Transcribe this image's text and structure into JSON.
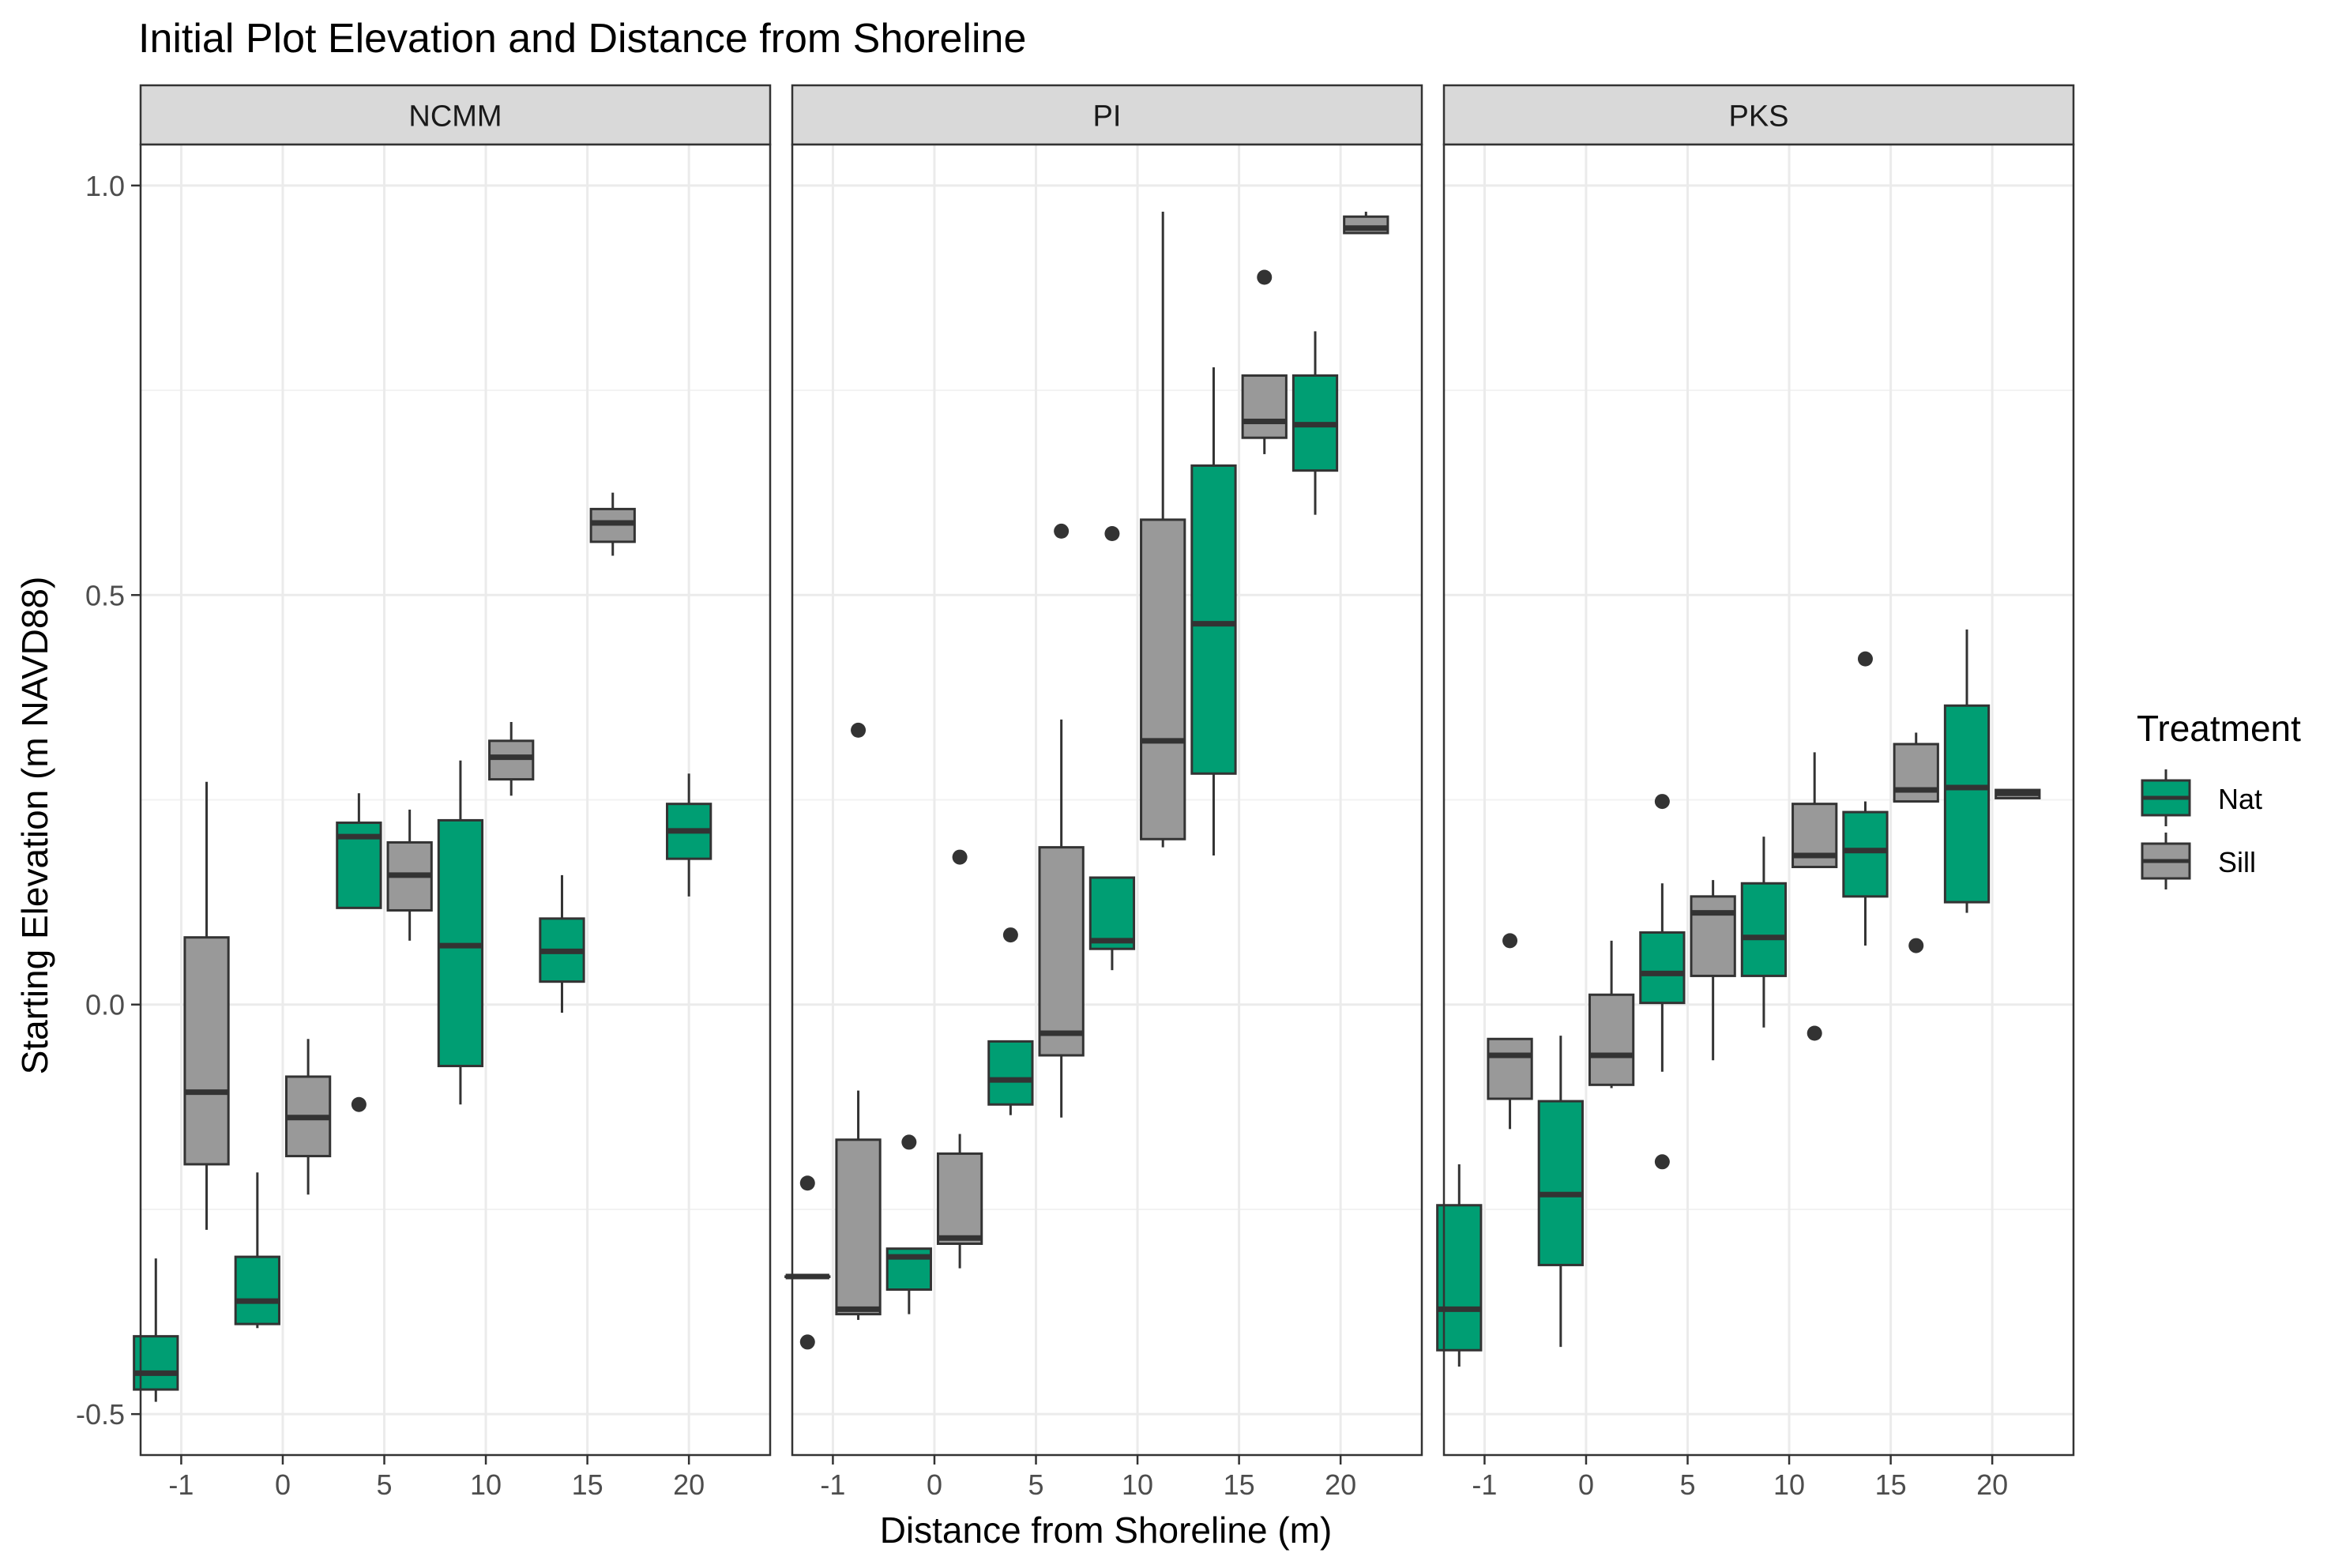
{
  "chart_data": {
    "type": "boxplot",
    "title": "Initial Plot Elevation and Distance from Shoreline",
    "xlabel": "Distance from Shoreline (m)",
    "ylabel": "Starting Elevation (m NAVD88)",
    "ylim": [
      -0.55,
      1.05
    ],
    "y_ticks": [
      "-0.5",
      "0.0",
      "0.5",
      "1.0"
    ],
    "categories": [
      "-1",
      "0",
      "5",
      "10",
      "15",
      "20"
    ],
    "grid": true,
    "legend": {
      "title": "Treatment",
      "position": "right",
      "entries": [
        {
          "name": "Nat",
          "color": "#009E73"
        },
        {
          "name": "Sill",
          "color": "#999999"
        }
      ]
    },
    "panels": [
      {
        "name": "NCMM",
        "boxes": [
          {
            "x": "-1",
            "group": "Nat",
            "whisker_low": -0.485,
            "q1": -0.47,
            "median": -0.45,
            "q3": -0.405,
            "whisker_high": -0.31,
            "outliers": []
          },
          {
            "x": "-1",
            "group": "Sill",
            "whisker_low": -0.275,
            "q1": -0.195,
            "median": -0.107,
            "q3": 0.082,
            "whisker_high": 0.272,
            "outliers": []
          },
          {
            "x": "0",
            "group": "Nat",
            "whisker_low": -0.395,
            "q1": -0.39,
            "median": -0.362,
            "q3": -0.308,
            "whisker_high": -0.205,
            "outliers": []
          },
          {
            "x": "0",
            "group": "Sill",
            "whisker_low": -0.232,
            "q1": -0.185,
            "median": -0.138,
            "q3": -0.088,
            "whisker_high": -0.042,
            "outliers": []
          },
          {
            "x": "5",
            "group": "Nat",
            "whisker_low": 0.118,
            "q1": 0.118,
            "median": 0.205,
            "q3": 0.222,
            "whisker_high": 0.258,
            "outliers": [
              -0.122
            ]
          },
          {
            "x": "5",
            "group": "Sill",
            "whisker_low": 0.078,
            "q1": 0.115,
            "median": 0.158,
            "q3": 0.198,
            "whisker_high": 0.238,
            "outliers": []
          },
          {
            "x": "10",
            "group": "Nat",
            "whisker_low": -0.122,
            "q1": -0.075,
            "median": 0.072,
            "q3": 0.225,
            "whisker_high": 0.298,
            "outliers": []
          },
          {
            "x": "10",
            "group": "Sill",
            "whisker_low": 0.255,
            "q1": 0.275,
            "median": 0.302,
            "q3": 0.322,
            "whisker_high": 0.345,
            "outliers": []
          },
          {
            "x": "15",
            "group": "Nat",
            "whisker_low": -0.01,
            "q1": 0.028,
            "median": 0.065,
            "q3": 0.105,
            "whisker_high": 0.158,
            "outliers": []
          },
          {
            "x": "15",
            "group": "Sill",
            "whisker_low": 0.548,
            "q1": 0.565,
            "median": 0.588,
            "q3": 0.605,
            "whisker_high": 0.625,
            "outliers": []
          },
          {
            "x": "20",
            "group": "Nat",
            "whisker_low": 0.132,
            "q1": 0.178,
            "median": 0.212,
            "q3": 0.245,
            "whisker_high": 0.282,
            "outliers": []
          }
        ]
      },
      {
        "name": "PI",
        "boxes": [
          {
            "x": "-1",
            "group": "Nat",
            "whisker_low": -0.332,
            "q1": -0.332,
            "median": -0.332,
            "q3": -0.332,
            "whisker_high": -0.332,
            "outliers": [
              -0.218,
              -0.412
            ]
          },
          {
            "x": "-1",
            "group": "Sill",
            "whisker_low": -0.385,
            "q1": -0.378,
            "median": -0.372,
            "q3": -0.165,
            "whisker_high": -0.105,
            "outliers": [
              0.335
            ]
          },
          {
            "x": "0",
            "group": "Nat",
            "whisker_low": -0.378,
            "q1": -0.348,
            "median": -0.308,
            "q3": -0.298,
            "whisker_high": -0.298,
            "outliers": [
              -0.168
            ]
          },
          {
            "x": "0",
            "group": "Sill",
            "whisker_low": -0.322,
            "q1": -0.292,
            "median": -0.285,
            "q3": -0.182,
            "whisker_high": -0.158,
            "outliers": [
              0.18
            ]
          },
          {
            "x": "5",
            "group": "Nat",
            "whisker_low": -0.135,
            "q1": -0.122,
            "median": -0.092,
            "q3": -0.045,
            "whisker_high": -0.045,
            "outliers": [
              0.085
            ]
          },
          {
            "x": "5",
            "group": "Sill",
            "whisker_low": -0.138,
            "q1": -0.062,
            "median": -0.035,
            "q3": 0.192,
            "whisker_high": 0.348,
            "outliers": [
              0.578
            ]
          },
          {
            "x": "10",
            "group": "Nat",
            "whisker_low": 0.042,
            "q1": 0.068,
            "median": 0.078,
            "q3": 0.155,
            "whisker_high": 0.155,
            "outliers": [
              0.575
            ]
          },
          {
            "x": "10",
            "group": "Sill",
            "whisker_low": 0.192,
            "q1": 0.202,
            "median": 0.322,
            "q3": 0.592,
            "whisker_high": 0.968,
            "outliers": []
          },
          {
            "x": "15",
            "group": "Nat",
            "whisker_low": 0.182,
            "q1": 0.282,
            "median": 0.465,
            "q3": 0.658,
            "whisker_high": 0.778,
            "outliers": []
          },
          {
            "x": "15",
            "group": "Sill",
            "whisker_low": 0.672,
            "q1": 0.692,
            "median": 0.712,
            "q3": 0.768,
            "whisker_high": 0.768,
            "outliers": [
              0.888
            ]
          },
          {
            "x": "20",
            "group": "Nat",
            "whisker_low": 0.598,
            "q1": 0.652,
            "median": 0.708,
            "q3": 0.768,
            "whisker_high": 0.822,
            "outliers": []
          },
          {
            "x": "20",
            "group": "Sill",
            "whisker_low": 0.942,
            "q1": 0.942,
            "median": 0.948,
            "q3": 0.962,
            "whisker_high": 0.968,
            "outliers": []
          }
        ]
      },
      {
        "name": "PKS",
        "boxes": [
          {
            "x": "-1",
            "group": "Nat",
            "whisker_low": -0.442,
            "q1": -0.422,
            "median": -0.372,
            "q3": -0.245,
            "whisker_high": -0.195,
            "outliers": []
          },
          {
            "x": "-1",
            "group": "Sill",
            "whisker_low": -0.152,
            "q1": -0.115,
            "median": -0.062,
            "q3": -0.042,
            "whisker_high": -0.042,
            "outliers": [
              0.078
            ]
          },
          {
            "x": "0",
            "group": "Nat",
            "whisker_low": -0.418,
            "q1": -0.318,
            "median": -0.232,
            "q3": -0.118,
            "whisker_high": -0.038,
            "outliers": []
          },
          {
            "x": "0",
            "group": "Sill",
            "whisker_low": -0.102,
            "q1": -0.098,
            "median": -0.062,
            "q3": 0.012,
            "whisker_high": 0.078,
            "outliers": []
          },
          {
            "x": "5",
            "group": "Nat",
            "whisker_low": -0.082,
            "q1": 0.002,
            "median": 0.038,
            "q3": 0.088,
            "whisker_high": 0.148,
            "outliers": [
              0.248,
              -0.192
            ]
          },
          {
            "x": "5",
            "group": "Sill",
            "whisker_low": -0.068,
            "q1": 0.035,
            "median": 0.112,
            "q3": 0.132,
            "whisker_high": 0.152,
            "outliers": []
          },
          {
            "x": "10",
            "group": "Nat",
            "whisker_low": -0.028,
            "q1": 0.035,
            "median": 0.082,
            "q3": 0.148,
            "whisker_high": 0.205,
            "outliers": []
          },
          {
            "x": "10",
            "group": "Sill",
            "whisker_low": 0.168,
            "q1": 0.168,
            "median": 0.182,
            "q3": 0.245,
            "whisker_high": 0.308,
            "outliers": [
              -0.035
            ]
          },
          {
            "x": "15",
            "group": "Nat",
            "whisker_low": 0.072,
            "q1": 0.132,
            "median": 0.188,
            "q3": 0.235,
            "whisker_high": 0.248,
            "outliers": [
              0.422
            ]
          },
          {
            "x": "15",
            "group": "Sill",
            "whisker_low": 0.248,
            "q1": 0.248,
            "median": 0.262,
            "q3": 0.318,
            "whisker_high": 0.332,
            "outliers": [
              0.072
            ]
          },
          {
            "x": "20",
            "group": "Nat",
            "whisker_low": 0.112,
            "q1": 0.125,
            "median": 0.265,
            "q3": 0.365,
            "whisker_high": 0.458,
            "outliers": []
          },
          {
            "x": "20",
            "group": "Sill",
            "whisker_low": 0.252,
            "q1": 0.252,
            "median": 0.258,
            "q3": 0.262,
            "whisker_high": 0.262,
            "outliers": []
          }
        ]
      }
    ]
  }
}
